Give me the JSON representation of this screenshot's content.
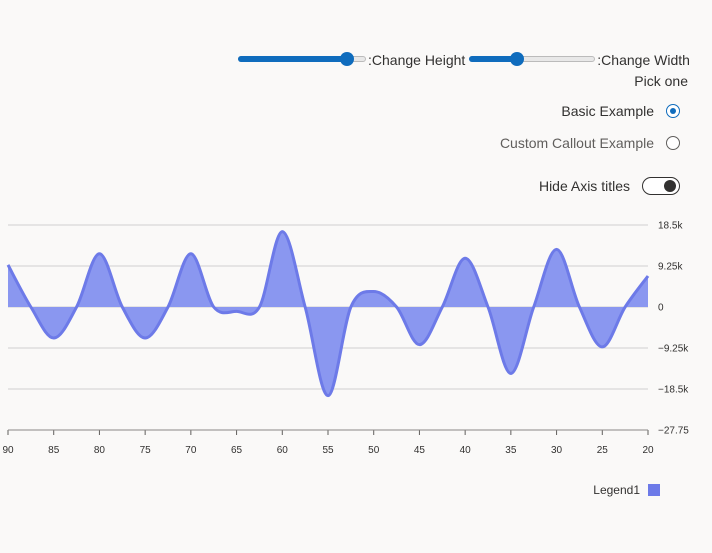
{
  "controls": {
    "height_slider": {
      "label": ":Change Height",
      "value": 0.85
    },
    "width_slider": {
      "label": ":Change Width",
      "value": 0.38
    },
    "radio_group": {
      "label": "Pick one",
      "options": [
        {
          "label": "Basic Example",
          "checked": true
        },
        {
          "label": "Custom Callout Example",
          "checked": false
        }
      ]
    },
    "toggle": {
      "label": "Hide Axis titles",
      "on": true
    }
  },
  "colors": {
    "series": "#6d7ae8",
    "series_fill": "#8a97f0",
    "accent": "#0f6cbd",
    "grid": "#d0d0d0"
  },
  "chart_data": {
    "type": "area",
    "x": [
      90,
      87.5,
      85,
      82.5,
      80,
      77.5,
      75,
      72.5,
      70,
      67.5,
      65,
      62.5,
      60,
      57.5,
      55,
      52.5,
      50,
      47.5,
      45,
      42.5,
      40,
      37.5,
      35,
      32.5,
      30,
      27.5,
      25,
      22.5,
      20
    ],
    "series": [
      {
        "name": "Legend1",
        "values": [
          9500,
          0,
          -7000,
          0,
          12000,
          0,
          -7000,
          0,
          12000,
          0,
          -1000,
          0,
          17000,
          0,
          -20000,
          0,
          3500,
          0,
          -8500,
          0,
          11000,
          0,
          -15000,
          0,
          13000,
          0,
          -9000,
          0,
          7000
        ]
      }
    ],
    "x_ticks": [
      "90",
      "85",
      "80",
      "75",
      "70",
      "65",
      "60",
      "55",
      "50",
      "45",
      "40",
      "35",
      "30",
      "25",
      "20"
    ],
    "x_tick_values": [
      90,
      85,
      80,
      75,
      70,
      65,
      60,
      55,
      50,
      45,
      40,
      35,
      30,
      25,
      20
    ],
    "y_ticks": [
      "18.5k",
      "9.25k",
      "0",
      "−9.25k",
      "−18.5k",
      "−27.75"
    ],
    "y_tick_values": [
      18500,
      9250,
      0,
      -9250,
      -18500,
      -27750
    ],
    "xlim": [
      90,
      20
    ],
    "ylim": [
      -27750,
      18500
    ],
    "grid": true,
    "legend_position": "bottom-right"
  }
}
